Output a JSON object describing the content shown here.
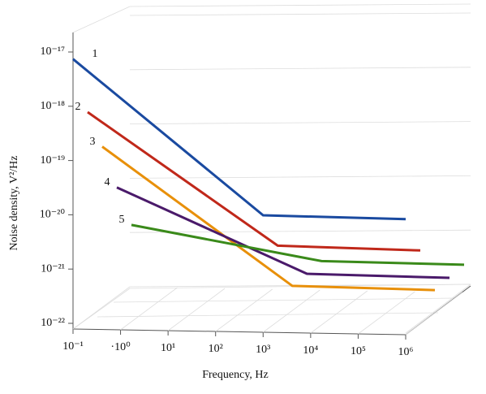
{
  "chart_data": {
    "type": "line",
    "xlabel": "Frequency, Hz",
    "ylabel": "Noise density, V²/Hz",
    "xscale": "log",
    "yscale": "log",
    "grid": true,
    "x": [
      0.1,
      1000,
      1000000
    ],
    "xlim": [
      0.1,
      1000000
    ],
    "ylim": [
      1e-22,
      1e-17
    ],
    "xticks": [
      {
        "value": 0.1,
        "label": "10⁻¹"
      },
      {
        "value": 1,
        "label": "·10⁰"
      },
      {
        "value": 10,
        "label": "10¹"
      },
      {
        "value": 100,
        "label": "10²"
      },
      {
        "value": 1000,
        "label": "10³"
      },
      {
        "value": 10000,
        "label": "10⁴"
      },
      {
        "value": 100000,
        "label": "10⁵"
      },
      {
        "value": 1000000,
        "label": "10⁶"
      }
    ],
    "yticks": [
      {
        "value": 1e-22,
        "label": "10⁻²²"
      },
      {
        "value": 1e-21,
        "label": "10⁻²¹"
      },
      {
        "value": 1e-20,
        "label": "10⁻²⁰"
      },
      {
        "value": 1e-19,
        "label": "10⁻¹⁹"
      },
      {
        "value": 1e-18,
        "label": "10⁻¹⁸"
      },
      {
        "value": 1e-17,
        "label": "10⁻¹⁷"
      }
    ],
    "series": [
      {
        "name": "1",
        "color": "#1a4aa0",
        "values": [
          7.4e-18,
          9.8e-21,
          8.3e-21
        ]
      },
      {
        "name": "2",
        "color": "#c0281a",
        "values": [
          7.8e-19,
          2.7e-21,
          2.2e-21
        ]
      },
      {
        "name": "3",
        "color": "#e8900a",
        "values": [
          1.8e-19,
          4.9e-22,
          4.1e-22
        ]
      },
      {
        "name": "4",
        "color": "#4a1a6a",
        "values": [
          3.2e-20,
          8.2e-22,
          6.9e-22
        ]
      },
      {
        "name": "5",
        "color": "#3a8a1a",
        "values": [
          6.5e-21,
          1.4e-21,
          1.2e-21
        ]
      }
    ]
  }
}
